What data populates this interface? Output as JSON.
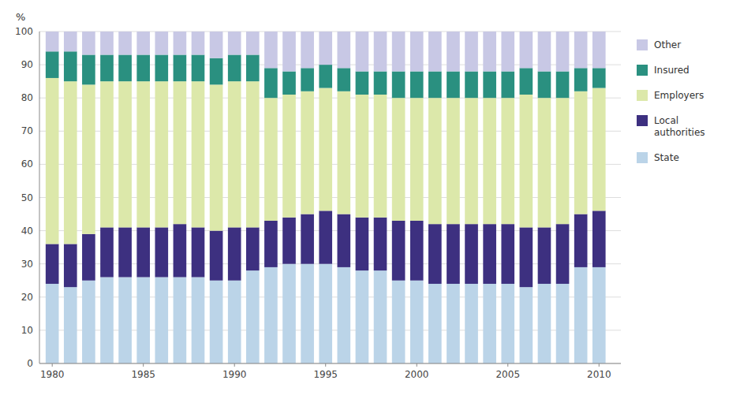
{
  "chart_data": {
    "type": "bar",
    "stacked": true,
    "y_label": "%",
    "x": [
      1980,
      1981,
      1982,
      1983,
      1984,
      1985,
      1986,
      1987,
      1988,
      1989,
      1990,
      1991,
      1992,
      1993,
      1994,
      1995,
      1996,
      1997,
      1998,
      1999,
      2000,
      2001,
      2002,
      2003,
      2004,
      2005,
      2006,
      2007,
      2008,
      2009,
      2010
    ],
    "series": [
      {
        "name": "State",
        "color": "#bbd4e8",
        "values": [
          24,
          23,
          25,
          26,
          26,
          26,
          26,
          26,
          26,
          25,
          25,
          28,
          29,
          30,
          30,
          30,
          29,
          28,
          28,
          25,
          25,
          24,
          24,
          24,
          24,
          24,
          23,
          24,
          24,
          29,
          29
        ]
      },
      {
        "name": "Local\nauthorities",
        "color": "#3d3080",
        "values": [
          12,
          13,
          14,
          15,
          15,
          15,
          15,
          16,
          15,
          15,
          16,
          13,
          14,
          14,
          15,
          16,
          16,
          16,
          16,
          18,
          18,
          18,
          18,
          18,
          18,
          18,
          18,
          17,
          18,
          16,
          17
        ]
      },
      {
        "name": "Employers",
        "color": "#dce8aa",
        "values": [
          50,
          49,
          45,
          44,
          44,
          44,
          44,
          43,
          44,
          44,
          44,
          44,
          37,
          37,
          37,
          37,
          37,
          37,
          37,
          37,
          37,
          38,
          38,
          38,
          38,
          38,
          40,
          39,
          38,
          37,
          37
        ]
      },
      {
        "name": "Insured",
        "color": "#2a9080",
        "values": [
          8,
          9,
          9,
          8,
          8,
          8,
          8,
          8,
          8,
          8,
          8,
          8,
          9,
          7,
          7,
          7,
          7,
          7,
          7,
          8,
          8,
          8,
          8,
          8,
          8,
          8,
          8,
          8,
          8,
          7,
          6
        ]
      },
      {
        "name": "Other",
        "color": "#c8c8e5",
        "values": [
          6,
          6,
          7,
          7,
          7,
          7,
          7,
          7,
          7,
          8,
          7,
          7,
          11,
          12,
          11,
          10,
          11,
          12,
          12,
          12,
          12,
          12,
          12,
          12,
          12,
          12,
          11,
          12,
          12,
          11,
          11
        ]
      }
    ],
    "xlim": [
      1979.3,
      2011.2
    ],
    "xticks": [
      1980,
      1985,
      1990,
      1995,
      2000,
      2005,
      2010
    ],
    "ylim": [
      0,
      100
    ],
    "yticks": [
      0,
      10,
      20,
      30,
      40,
      50,
      60,
      70,
      80,
      90,
      100
    ],
    "grid": true,
    "legend": "right"
  }
}
